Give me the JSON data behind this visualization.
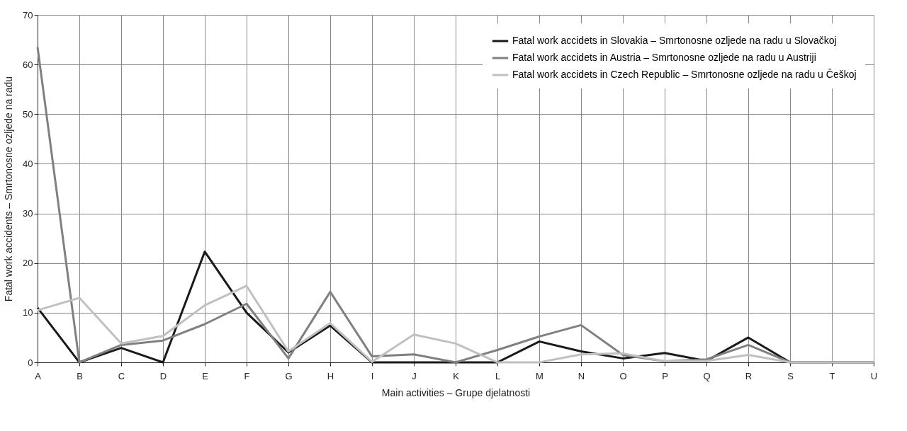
{
  "chart_data": {
    "type": "line",
    "xlabel": "Main activities – Grupe djelatnosti",
    "ylabel": "Fatal work accidents – Smrtonosne ozljede na radu",
    "categories": [
      "A",
      "B",
      "C",
      "D",
      "E",
      "F",
      "G",
      "H",
      "I",
      "J",
      "K",
      "L",
      "M",
      "N",
      "O",
      "P",
      "Q",
      "R",
      "S",
      "T",
      "U"
    ],
    "series": [
      {
        "name": "Fatal work accidets in Slovakia – Smrtonosne ozljede na radu u Slovačkoj",
        "color": "#1a1a1a",
        "values": [
          11,
          0,
          2.9,
          0,
          22.3,
          10,
          2,
          7.4,
          0,
          0,
          0,
          0,
          4.2,
          2.2,
          0.8,
          1.9,
          0.3,
          5,
          0,
          0,
          0
        ]
      },
      {
        "name": "Fatal work accidets in Austria – Smrtonosne ozljede na radu u Austriji",
        "color": "#808080",
        "values": [
          63.5,
          0,
          3.5,
          4.4,
          7.7,
          11.8,
          0.8,
          14.2,
          1.2,
          1.6,
          0,
          2.5,
          5.2,
          7.5,
          1.5,
          0.2,
          0.6,
          3.5,
          0,
          0,
          0
        ]
      },
      {
        "name": "Fatal work accidets in Czech Republic – Smrtonosne ozljede na radu u Češkoj",
        "color": "#c0c0c0",
        "values": [
          10.5,
          13,
          3.8,
          5.3,
          11.5,
          15.4,
          2.2,
          7.9,
          0.1,
          5.6,
          3.8,
          0,
          0,
          1.6,
          1.8,
          0.2,
          0.3,
          1.5,
          0,
          0,
          0
        ]
      }
    ],
    "ylim": [
      0,
      70
    ],
    "yticks": [
      0,
      10,
      20,
      30,
      40,
      50,
      60,
      70
    ],
    "grid": true,
    "legend": "top right",
    "marker": "none",
    "line_style": "solid"
  }
}
